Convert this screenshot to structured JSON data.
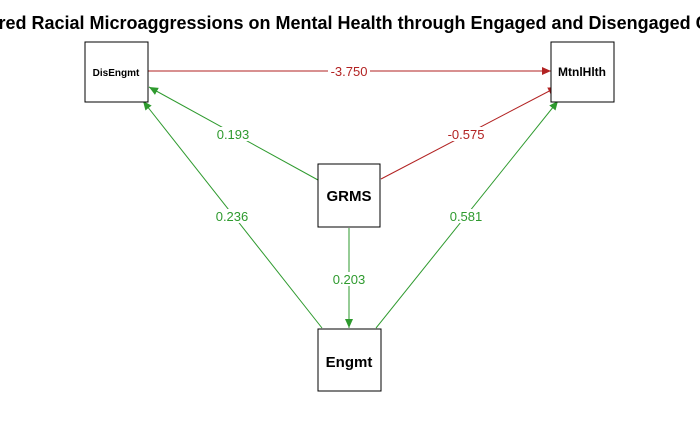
{
  "title": "Gendered Racial Microaggressions on Mental Health through Engaged and Disengaged Coping",
  "nodes": {
    "disengmt": {
      "label": "DisEngmt"
    },
    "mtnlhlth": {
      "label": "MtnlHlth"
    },
    "grms": {
      "label": "GRMS"
    },
    "engmt": {
      "label": "Engmt"
    }
  },
  "edges": {
    "disengmt_to_mtnlhlth": {
      "label": "-3.750",
      "color": "#b22222"
    },
    "grms_to_disengmt": {
      "label": "0.193",
      "color": "#2e9a2e"
    },
    "grms_to_mtnlhlth": {
      "label": "-0.575",
      "color": "#b22222"
    },
    "engmt_to_disengmt": {
      "label": "0.236",
      "color": "#2e9a2e"
    },
    "engmt_to_mtnlhlth": {
      "label": "0.581",
      "color": "#2e9a2e"
    },
    "grms_to_engmt": {
      "label": "0.203",
      "color": "#2e9a2e"
    }
  }
}
